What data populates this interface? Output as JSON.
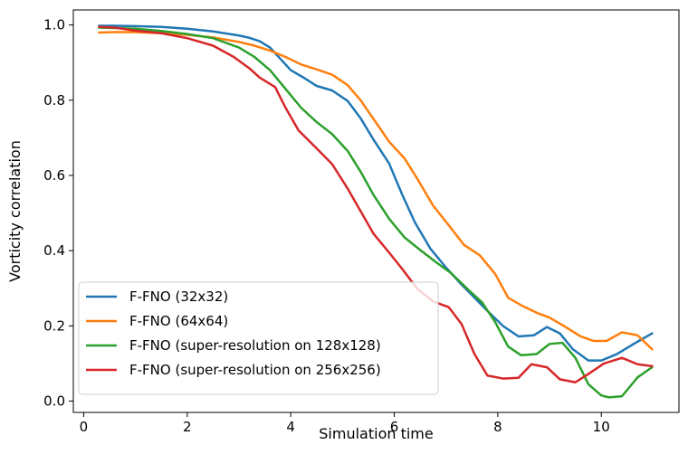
{
  "chart_data": {
    "type": "line",
    "title": "",
    "xlabel": "Simulation time",
    "ylabel": "Vorticity correlation",
    "xlim": [
      -0.2,
      11.5
    ],
    "ylim": [
      -0.03,
      1.04
    ],
    "xticks": [
      0,
      2,
      4,
      6,
      8,
      10
    ],
    "yticks": [
      0.0,
      0.2,
      0.4,
      0.6,
      0.8,
      1.0
    ],
    "xtick_labels": [
      "0",
      "2",
      "4",
      "6",
      "8",
      "10"
    ],
    "ytick_labels": [
      "0.0",
      "0.2",
      "0.4",
      "0.6",
      "0.8",
      "1.0"
    ],
    "grid": false,
    "legend_position": "bottom-left",
    "series": [
      {
        "name": "F-FNO (32x32)",
        "color": "#1f77b4",
        "x": [
          0.3,
          0.6,
          1.0,
          1.5,
          2.0,
          2.5,
          3.0,
          3.2,
          3.4,
          3.6,
          3.8,
          4.0,
          4.25,
          4.5,
          4.8,
          5.1,
          5.35,
          5.6,
          5.9,
          6.15,
          6.4,
          6.7,
          7.0,
          7.3,
          7.55,
          7.8,
          8.1,
          8.4,
          8.7,
          8.95,
          9.2,
          9.45,
          9.75,
          10.0,
          10.3,
          10.6,
          10.98
        ],
        "y": [
          0.998,
          0.998,
          0.997,
          0.995,
          0.99,
          0.983,
          0.972,
          0.966,
          0.957,
          0.94,
          0.91,
          0.88,
          0.86,
          0.838,
          0.826,
          0.798,
          0.752,
          0.695,
          0.632,
          0.55,
          0.475,
          0.405,
          0.355,
          0.31,
          0.275,
          0.24,
          0.2,
          0.172,
          0.175,
          0.197,
          0.18,
          0.138,
          0.108,
          0.108,
          0.125,
          0.15,
          0.18
        ]
      },
      {
        "name": "F-FNO (64x64)",
        "color": "#ff7f0e",
        "x": [
          0.3,
          0.6,
          1.0,
          1.5,
          2.0,
          2.5,
          3.0,
          3.3,
          3.6,
          3.9,
          4.2,
          4.5,
          4.8,
          5.1,
          5.35,
          5.6,
          5.9,
          6.2,
          6.45,
          6.75,
          7.05,
          7.35,
          7.65,
          7.95,
          8.2,
          8.45,
          8.75,
          9.0,
          9.3,
          9.6,
          9.85,
          10.1,
          10.4,
          10.7,
          10.98
        ],
        "y": [
          0.98,
          0.981,
          0.981,
          0.978,
          0.974,
          0.967,
          0.955,
          0.945,
          0.932,
          0.915,
          0.895,
          0.882,
          0.868,
          0.84,
          0.8,
          0.75,
          0.69,
          0.645,
          0.59,
          0.52,
          0.468,
          0.415,
          0.388,
          0.338,
          0.275,
          0.255,
          0.235,
          0.222,
          0.198,
          0.172,
          0.16,
          0.16,
          0.183,
          0.175,
          0.138
        ]
      },
      {
        "name": "F-FNO (super-resolution on 128x128)",
        "color": "#2ca02c",
        "x": [
          0.3,
          0.6,
          1.0,
          1.5,
          2.0,
          2.5,
          3.0,
          3.3,
          3.6,
          3.9,
          4.2,
          4.5,
          4.8,
          5.1,
          5.35,
          5.6,
          5.9,
          6.2,
          6.5,
          6.8,
          7.1,
          7.4,
          7.7,
          7.95,
          8.2,
          8.45,
          8.75,
          9.0,
          9.25,
          9.5,
          9.75,
          10.0,
          10.15,
          10.4,
          10.7,
          10.98
        ],
        "y": [
          0.993,
          0.992,
          0.99,
          0.984,
          0.976,
          0.965,
          0.94,
          0.915,
          0.88,
          0.83,
          0.78,
          0.742,
          0.71,
          0.665,
          0.61,
          0.548,
          0.485,
          0.435,
          0.402,
          0.37,
          0.34,
          0.3,
          0.262,
          0.21,
          0.145,
          0.122,
          0.125,
          0.152,
          0.155,
          0.115,
          0.045,
          0.015,
          0.01,
          0.013,
          0.063,
          0.09
        ]
      },
      {
        "name": "F-FNO (super-resolution on 256x256)",
        "color": "#d62728",
        "x": [
          0.3,
          0.6,
          1.0,
          1.5,
          2.0,
          2.5,
          2.9,
          3.2,
          3.4,
          3.7,
          3.9,
          4.15,
          4.5,
          4.8,
          5.1,
          5.35,
          5.6,
          5.9,
          6.15,
          6.45,
          6.75,
          7.05,
          7.3,
          7.55,
          7.8,
          8.1,
          8.4,
          8.65,
          8.95,
          9.2,
          9.5,
          9.75,
          10.05,
          10.4,
          10.7,
          10.98
        ],
        "y": [
          0.995,
          0.993,
          0.985,
          0.978,
          0.965,
          0.945,
          0.915,
          0.885,
          0.86,
          0.835,
          0.78,
          0.72,
          0.672,
          0.63,
          0.565,
          0.505,
          0.445,
          0.395,
          0.352,
          0.298,
          0.265,
          0.25,
          0.205,
          0.125,
          0.068,
          0.06,
          0.062,
          0.098,
          0.09,
          0.058,
          0.05,
          0.072,
          0.1,
          0.115,
          0.098,
          0.093
        ]
      }
    ]
  }
}
